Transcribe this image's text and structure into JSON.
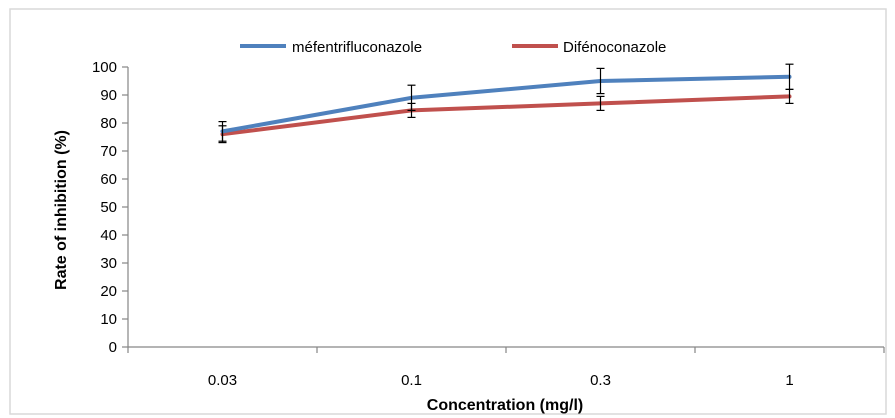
{
  "chart_data": {
    "type": "line",
    "title": "",
    "xlabel": "Concentration (mg/l)",
    "ylabel": "Rate of inhibition (%)",
    "categories": [
      "0.03",
      "0.1",
      "0.3",
      "1"
    ],
    "ylim": [
      0,
      100
    ],
    "yticks": [
      "0",
      "10",
      "20",
      "30",
      "40",
      "50",
      "60",
      "70",
      "80",
      "90",
      "100"
    ],
    "grid": false,
    "legend_position": "top",
    "series": [
      {
        "name": "méfentrifluconazole",
        "color": "#4F81BD",
        "values": [
          77,
          89,
          95,
          96.5
        ],
        "error": [
          3.5,
          4.5,
          4.5,
          4.5
        ]
      },
      {
        "name": "Difénoconazole",
        "color": "#C0504D",
        "values": [
          76,
          84.5,
          87,
          89.5
        ],
        "error": [
          3,
          2.5,
          2.5,
          2.5
        ]
      }
    ]
  }
}
